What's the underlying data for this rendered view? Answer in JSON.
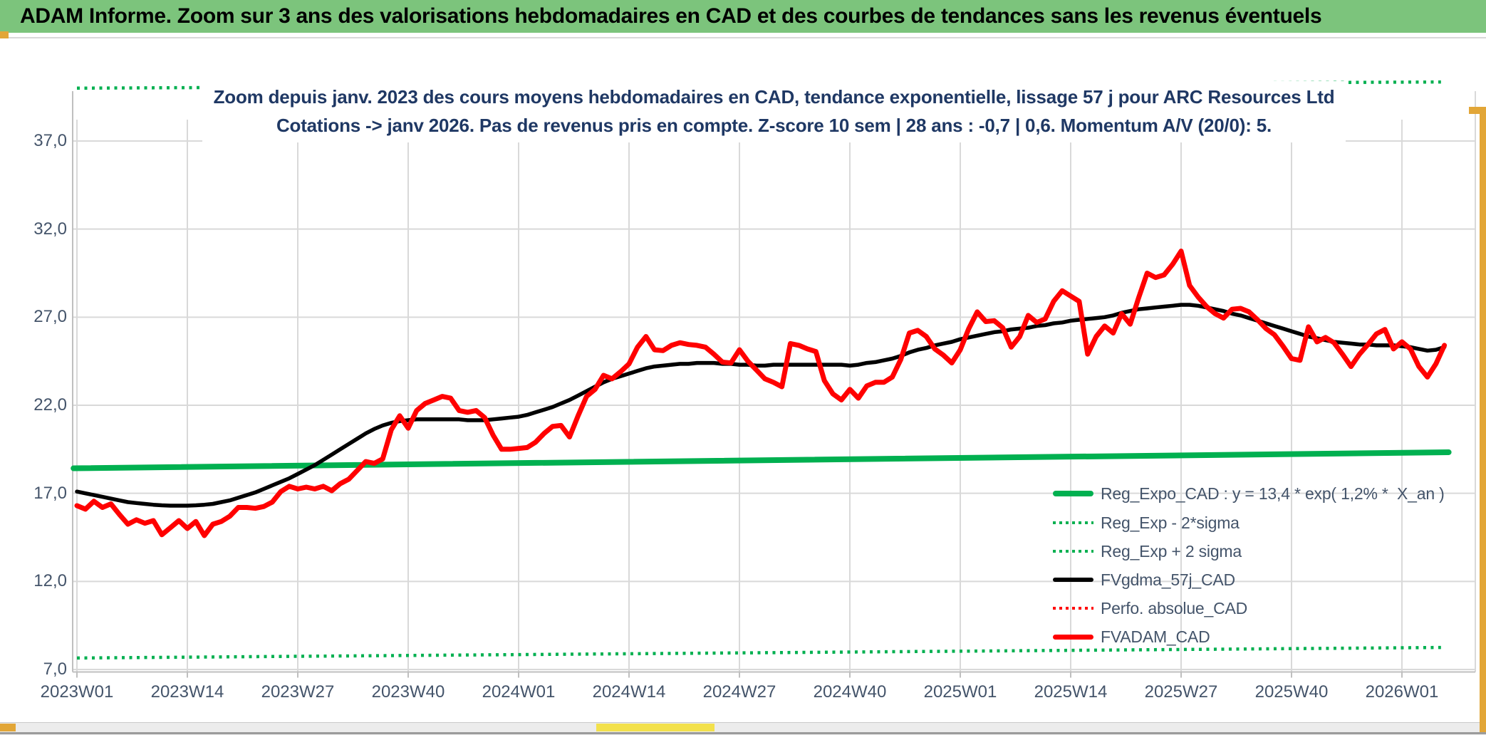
{
  "header": {
    "title": "ADAM Informe. Zoom sur 3 ans des valorisations hebdomadaires en CAD et des courbes de tendances sans les revenus éventuels",
    "bg_color": "#7cc47c",
    "text_color": "#000000"
  },
  "chart": {
    "title_line1": "Zoom depuis janv. 2023 des cours moyens hebdomadaires en CAD, tendance exponentielle, lissage 57 j pour ARC Resources Ltd",
    "title_line2": "Cotations -> janv 2026. Pas de revenus pris en compte. Z-score 10 sem | 28 ans : -0,7 | 0,6. Momentum A/V (20/0): 5.",
    "title_color": "#1f3864",
    "axis_label_color": "#44546a",
    "legend_text_color": "#44546a",
    "gridline_color": "#d9d9d9",
    "axis_line_color": "#bfbfbf"
  },
  "chart_data": {
    "type": "line",
    "x_axis": {
      "unit": "ISO week",
      "tick_labels": [
        "2023W01",
        "2023W14",
        "2023W27",
        "2023W40",
        "2024W01",
        "2024W14",
        "2024W27",
        "2024W40",
        "2025W01",
        "2025W14",
        "2025W27",
        "2025W40",
        "2026W01"
      ],
      "tick_weeks": [
        0,
        13,
        26,
        39,
        52,
        65,
        78,
        91,
        104,
        117,
        130,
        143,
        156
      ]
    },
    "y_axis": {
      "tick_labels": [
        "37,0",
        "32,0",
        "27,0",
        "22,0",
        "17,0",
        "12,0",
        "7,0"
      ],
      "tick_values": [
        37,
        32,
        27,
        22,
        17,
        12,
        7
      ],
      "min": 7,
      "max": 41
    },
    "grid": true,
    "legend_position": "inside-bottom-right",
    "series": [
      {
        "name": "Reg_Expo_CAD : y = 13,4 * exp( 1,2% *  X_an )",
        "color": "#00b050",
        "style": "solid",
        "width": 8,
        "points": [
          [
            -0.4,
            18.42
          ],
          [
            161.5,
            19.33
          ]
        ]
      },
      {
        "name": "Reg_Exp - 2*sigma",
        "color": "#00b050",
        "style": "dotted",
        "width": 4.5,
        "points": [
          [
            0,
            7.65
          ],
          [
            160.6,
            8.25
          ]
        ]
      },
      {
        "name": "Reg_Exp + 2 sigma",
        "color": "#00b050",
        "style": "dotted",
        "width": 4.5,
        "points": [
          [
            0,
            40.0
          ],
          [
            160.6,
            40.35
          ]
        ]
      },
      {
        "name": "FVgdma_57j_CAD",
        "color": "#000000",
        "style": "solid",
        "width": 5.5,
        "start_week": 0,
        "values": [
          17.1,
          17.0,
          16.9,
          16.8,
          16.7,
          16.6,
          16.5,
          16.45,
          16.4,
          16.35,
          16.32,
          16.3,
          16.3,
          16.3,
          16.32,
          16.35,
          16.4,
          16.5,
          16.6,
          16.75,
          16.9,
          17.05,
          17.25,
          17.45,
          17.65,
          17.85,
          18.1,
          18.35,
          18.6,
          18.9,
          19.2,
          19.5,
          19.8,
          20.1,
          20.4,
          20.65,
          20.85,
          21.0,
          21.1,
          21.15,
          21.2,
          21.2,
          21.2,
          21.2,
          21.2,
          21.2,
          21.15,
          21.15,
          21.15,
          21.2,
          21.25,
          21.3,
          21.35,
          21.45,
          21.6,
          21.75,
          21.9,
          22.1,
          22.3,
          22.55,
          22.8,
          23.05,
          23.3,
          23.5,
          23.65,
          23.8,
          23.95,
          24.1,
          24.2,
          24.25,
          24.3,
          24.35,
          24.35,
          24.4,
          24.4,
          24.4,
          24.35,
          24.35,
          24.3,
          24.3,
          24.25,
          24.25,
          24.3,
          24.3,
          24.3,
          24.3,
          24.3,
          24.3,
          24.3,
          24.3,
          24.3,
          24.25,
          24.3,
          24.4,
          24.45,
          24.55,
          24.65,
          24.8,
          25.0,
          25.15,
          25.25,
          25.4,
          25.5,
          25.6,
          25.75,
          25.85,
          25.95,
          26.05,
          26.15,
          26.2,
          26.3,
          26.35,
          26.4,
          26.5,
          26.55,
          26.65,
          26.7,
          26.8,
          26.85,
          26.9,
          26.95,
          27.0,
          27.1,
          27.25,
          27.35,
          27.45,
          27.5,
          27.55,
          27.6,
          27.65,
          27.7,
          27.7,
          27.65,
          27.55,
          27.45,
          27.35,
          27.2,
          27.1,
          26.95,
          26.8,
          26.65,
          26.5,
          26.35,
          26.2,
          26.05,
          25.9,
          25.8,
          25.7,
          25.6,
          25.55,
          25.5,
          25.45,
          25.45,
          25.4,
          25.4,
          25.4,
          25.35,
          25.3,
          25.2,
          25.1,
          25.15,
          25.3
        ]
      },
      {
        "name": "Perfo. absolue_CAD",
        "color": "#ff0000",
        "style": "dotted",
        "width": 3.5,
        "hidden_behind": "FVADAM_CAD",
        "values": []
      },
      {
        "name": "FVADAM_CAD",
        "color": "#ff0000",
        "style": "solid",
        "width": 7,
        "start_week": 0,
        "values": [
          16.3,
          16.1,
          16.55,
          16.2,
          16.4,
          15.8,
          15.25,
          15.5,
          15.3,
          15.45,
          14.65,
          15.05,
          15.45,
          15.0,
          15.4,
          14.6,
          15.25,
          15.4,
          15.7,
          16.2,
          16.2,
          16.15,
          16.25,
          16.5,
          17.1,
          17.4,
          17.25,
          17.35,
          17.25,
          17.4,
          17.15,
          17.55,
          17.8,
          18.3,
          18.8,
          18.7,
          18.95,
          20.6,
          21.4,
          20.7,
          21.7,
          22.1,
          22.3,
          22.5,
          22.4,
          21.7,
          21.6,
          21.7,
          21.3,
          20.3,
          19.5,
          19.5,
          19.55,
          19.6,
          19.9,
          20.4,
          20.8,
          20.85,
          20.2,
          21.4,
          22.5,
          22.9,
          23.7,
          23.5,
          23.9,
          24.35,
          25.3,
          25.9,
          25.15,
          25.1,
          25.4,
          25.55,
          25.45,
          25.4,
          25.3,
          24.9,
          24.45,
          24.4,
          25.15,
          24.5,
          24.0,
          23.5,
          23.3,
          23.05,
          25.5,
          25.4,
          25.2,
          25.05,
          23.4,
          22.65,
          22.3,
          22.9,
          22.4,
          23.1,
          23.3,
          23.3,
          23.6,
          24.6,
          26.1,
          26.25,
          25.9,
          25.2,
          24.85,
          24.4,
          25.15,
          26.35,
          27.3,
          26.75,
          26.8,
          26.4,
          25.3,
          25.9,
          27.1,
          26.7,
          26.9,
          27.9,
          28.5,
          28.2,
          27.9,
          24.9,
          25.9,
          26.5,
          26.1,
          27.2,
          26.6,
          28.1,
          29.5,
          29.25,
          29.4,
          30.0,
          30.75,
          28.8,
          28.15,
          27.6,
          27.2,
          26.95,
          27.45,
          27.5,
          27.3,
          26.85,
          26.35,
          26.0,
          25.35,
          24.65,
          24.55,
          26.45,
          25.6,
          25.85,
          25.55,
          24.9,
          24.2,
          24.9,
          25.45,
          26.05,
          26.3,
          25.2,
          25.6,
          25.2,
          24.2,
          23.6,
          24.35,
          25.4
        ]
      }
    ]
  },
  "decorations": {
    "gold_color": "#e2a637",
    "yellow_strip_color": "#f3e14c",
    "bottom_band_color": "#ececec"
  }
}
